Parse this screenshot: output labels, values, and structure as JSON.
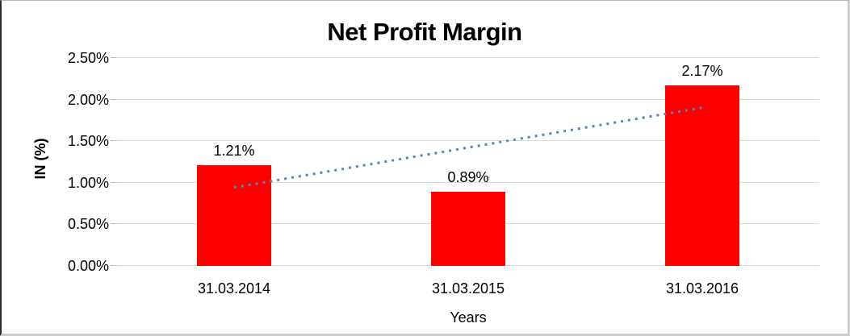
{
  "chart_data": {
    "type": "bar",
    "title": "Net Profit Margin",
    "xlabel": "Years",
    "ylabel": "IN (%)",
    "categories": [
      "31.03.2014",
      "31.03.2015",
      "31.03.2016"
    ],
    "values": [
      1.21,
      0.89,
      2.17
    ],
    "data_labels": [
      "1.21%",
      "0.89%",
      "2.17%"
    ],
    "ylim": [
      0,
      2.5
    ],
    "y_ticks": [
      {
        "value": 0.0,
        "label": "0.00%"
      },
      {
        "value": 0.5,
        "label": "0.50%"
      },
      {
        "value": 1.0,
        "label": "1.00%"
      },
      {
        "value": 1.5,
        "label": "1.50%"
      },
      {
        "value": 2.0,
        "label": "2.00%"
      },
      {
        "value": 2.5,
        "label": "2.50%"
      }
    ],
    "grid": true,
    "legend": "none",
    "colors": {
      "bar": "#FF0000",
      "trendline": "#4F86C6",
      "gridline": "#D9D9D9",
      "tick": "#BFBFBF",
      "text": "#000000"
    },
    "trendline": {
      "type": "linear",
      "style": "dotted",
      "start_value": 0.9433,
      "end_value": 1.9033
    }
  }
}
